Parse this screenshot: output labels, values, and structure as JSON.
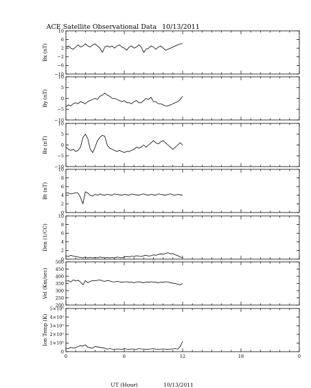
{
  "title": "ACE Satellite Observational Data",
  "date": "10/13/2011",
  "xlabel": "UT (Hour)",
  "xlabel_date": "10/13/2011",
  "x_ticks": [
    "0",
    "6",
    "12",
    "18",
    "0"
  ],
  "chart_data": [
    {
      "type": "line",
      "id": "bx",
      "ylabel": "Bx (nT)",
      "ylim": [
        -10,
        10
      ],
      "y_ticks": [
        "10",
        "6",
        "2",
        "−2",
        "−6",
        "−10"
      ],
      "series": [
        {
          "x": [
            0,
            0.25,
            0.5,
            0.75,
            1,
            1.25,
            1.5,
            1.75,
            2,
            2.25,
            2.5,
            2.75,
            3,
            3.25,
            3.5,
            3.75,
            4,
            4.25,
            4.5,
            4.75,
            5,
            5.25,
            5.5,
            5.75,
            6,
            6.25,
            6.5,
            6.75,
            7,
            7.25,
            7.5,
            7.75,
            8,
            8.25,
            8.5,
            8.75,
            9,
            9.25,
            9.5,
            9.75,
            10,
            10.25,
            10.5,
            10.75,
            11,
            11.25,
            11.5,
            11.75,
            12
          ],
          "values": [
            2.5,
            3,
            2,
            1.5,
            2.5,
            3.5,
            2.5,
            3,
            4,
            3,
            2.5,
            3.5,
            4,
            3,
            2,
            0,
            2.5,
            3,
            2.5,
            3,
            2,
            3,
            3.5,
            2.5,
            2,
            1,
            2.5,
            3,
            2,
            2.5,
            3.5,
            2.5,
            0,
            1.5,
            2,
            3,
            2.5,
            1.5,
            2.5,
            3,
            2,
            1,
            1.5,
            2,
            2.5,
            3,
            3.5,
            4,
            4
          ]
        }
      ]
    },
    {
      "type": "line",
      "id": "by",
      "ylabel": "By (nT)",
      "ylim": [
        -10,
        10
      ],
      "y_ticks": [
        "10",
        "5",
        "0",
        "−5",
        "−10"
      ],
      "series": [
        {
          "x": [
            0,
            0.25,
            0.5,
            0.75,
            1,
            1.25,
            1.5,
            1.75,
            2,
            2.25,
            2.5,
            2.75,
            3,
            3.25,
            3.5,
            3.75,
            4,
            4.25,
            4.5,
            4.75,
            5,
            5.25,
            5.5,
            5.75,
            6,
            6.25,
            6.5,
            6.75,
            7,
            7.25,
            7.5,
            7.75,
            8,
            8.25,
            8.5,
            8.75,
            9,
            9.25,
            9.5,
            9.75,
            10,
            10.25,
            10.5,
            10.75,
            11,
            11.25,
            11.5,
            11.75,
            12
          ],
          "values": [
            -4,
            -3,
            -3.5,
            -2.5,
            -2,
            -2.5,
            -1.5,
            -2,
            -2.5,
            -1.5,
            -1,
            -0.5,
            0,
            -0.5,
            1,
            1.5,
            2.5,
            1.5,
            1,
            0,
            0,
            -0.5,
            -1,
            -1.5,
            -1,
            -2,
            -2,
            -2.5,
            -1.5,
            -1,
            -2,
            -2,
            -1,
            0,
            -0.5,
            0.5,
            -1.5,
            -1.5,
            -2.5,
            -2.5,
            -3,
            -3.5,
            -3.5,
            -3,
            -2.5,
            -2,
            -1.5,
            -0.5,
            1
          ]
        }
      ]
    },
    {
      "type": "line",
      "id": "bz",
      "ylabel": "Bz (nT)",
      "ylim": [
        -10,
        10
      ],
      "y_ticks": [
        "10",
        "5",
        "0",
        "−5",
        "−10"
      ],
      "series": [
        {
          "x": [
            0,
            0.25,
            0.5,
            0.75,
            1,
            1.25,
            1.5,
            1.75,
            2,
            2.25,
            2.5,
            2.75,
            3,
            3.25,
            3.5,
            3.75,
            4,
            4.25,
            4.5,
            4.75,
            5,
            5.25,
            5.5,
            5.75,
            6,
            6.25,
            6.5,
            6.75,
            7,
            7.25,
            7.5,
            7.75,
            8,
            8.25,
            8.5,
            8.75,
            9,
            9.25,
            9.5,
            9.75,
            10,
            10.25,
            10.5,
            10.75,
            11,
            11.25,
            11.5,
            11.75,
            12
          ],
          "values": [
            -1,
            -2,
            -2.5,
            -2,
            -3,
            -2.5,
            -1,
            3.5,
            5,
            3,
            -2,
            -3.5,
            -1,
            2,
            3.5,
            4.5,
            4,
            0,
            -1.5,
            -2,
            -2.5,
            -3,
            -2.5,
            -3,
            -3.5,
            -3,
            -3,
            -2.5,
            -2,
            -1,
            -1.5,
            -1,
            0,
            -1,
            0,
            1,
            2,
            1,
            0.5,
            1.5,
            2,
            1,
            0,
            -1,
            -2,
            -1,
            0,
            1,
            0
          ]
        }
      ]
    },
    {
      "type": "line",
      "id": "bt",
      "ylabel": "Bt (nT)",
      "ylim": [
        0,
        10
      ],
      "y_ticks": [
        "10",
        "8",
        "6",
        "4",
        "2",
        "0"
      ],
      "series": [
        {
          "x": [
            0,
            0.25,
            0.5,
            0.75,
            1,
            1.25,
            1.5,
            1.75,
            2,
            2.25,
            2.5,
            2.75,
            3,
            3.25,
            3.5,
            3.75,
            4,
            4.25,
            4.5,
            4.75,
            5,
            5.25,
            5.5,
            5.75,
            6,
            6.25,
            6.5,
            6.75,
            7,
            7.25,
            7.5,
            7.75,
            8,
            8.25,
            8.5,
            8.75,
            9,
            9.25,
            9.5,
            9.75,
            10,
            10.25,
            10.5,
            10.75,
            11,
            11.25,
            11.5,
            11.75,
            12
          ],
          "values": [
            4.6,
            4.5,
            4.3,
            4.4,
            4.6,
            4.5,
            3.5,
            2,
            4.8,
            4.5,
            4,
            3.8,
            4.2,
            4,
            4.3,
            4.1,
            4,
            4.2,
            4.1,
            4,
            4.3,
            4.2,
            4.1,
            4,
            4.2,
            4.1,
            4,
            4.3,
            4.2,
            4.1,
            4,
            4.2,
            4.3,
            4.1,
            4,
            4.2,
            4.1,
            4,
            4.3,
            4.2,
            4.1,
            4,
            4.2,
            4.3,
            4.1,
            4,
            4.2,
            4.1,
            4
          ]
        }
      ]
    },
    {
      "type": "line",
      "id": "den",
      "ylabel": "Den (1/CC)",
      "ylim": [
        0,
        10
      ],
      "y_ticks": [
        "10",
        "8",
        "6",
        "4",
        "2",
        "0"
      ],
      "series": [
        {
          "x": [
            0,
            0.25,
            0.5,
            0.75,
            1,
            1.25,
            1.5,
            1.75,
            2,
            2.25,
            2.5,
            2.75,
            3,
            3.25,
            3.5,
            3.75,
            4,
            4.25,
            4.5,
            4.75,
            5,
            5.25,
            5.5,
            5.75,
            6,
            6.25,
            6.5,
            6.75,
            7,
            7.25,
            7.5,
            7.75,
            8,
            8.25,
            8.5,
            8.75,
            9,
            9.25,
            9.5,
            9.75,
            10,
            10.25,
            10.5,
            10.75,
            11,
            11.25,
            11.5,
            11.75,
            12
          ],
          "values": [
            0.8,
            0.6,
            0.9,
            0.7,
            0.6,
            0.5,
            0.4,
            0.3,
            0.5,
            0.3,
            0.4,
            0.3,
            0.4,
            0.3,
            0.5,
            0.4,
            0.3,
            0.4,
            0.3,
            0.4,
            0.3,
            0.5,
            0.4,
            0.3,
            0.5,
            0.6,
            0.5,
            0.7,
            0.6,
            0.8,
            0.7,
            0.6,
            0.8,
            0.9,
            0.7,
            0.8,
            1,
            0.9,
            1.1,
            1.2,
            1.1,
            1.3,
            1.5,
            1.2,
            1.3,
            1,
            0.8,
            0.5,
            0.3
          ]
        }
      ]
    },
    {
      "type": "line",
      "id": "vel",
      "ylabel": "Vel (Km/sec)",
      "ylim": [
        200,
        500
      ],
      "y_ticks": [
        "500",
        "450",
        "400",
        "350",
        "300",
        "250",
        "200"
      ],
      "series": [
        {
          "x": [
            0,
            0.25,
            0.5,
            0.75,
            1,
            1.25,
            1.5,
            1.75,
            2,
            2.25,
            2.5,
            2.75,
            3,
            3.25,
            3.5,
            3.75,
            4,
            4.25,
            4.5,
            4.75,
            5,
            5.25,
            5.5,
            5.75,
            6,
            6.25,
            6.5,
            6.75,
            7,
            7.25,
            7.5,
            7.75,
            8,
            8.25,
            8.5,
            8.75,
            9,
            9.25,
            9.5,
            9.75,
            10,
            10.25,
            10.5,
            10.75,
            11,
            11.25,
            11.5,
            11.75,
            12
          ],
          "values": [
            365,
            370,
            360,
            375,
            368,
            372,
            360,
            340,
            370,
            355,
            365,
            370,
            368,
            372,
            375,
            368,
            365,
            370,
            368,
            362,
            360,
            365,
            362,
            358,
            360,
            362,
            358,
            360,
            355,
            360,
            362,
            358,
            355,
            360,
            358,
            362,
            360,
            358,
            355,
            360,
            358,
            362,
            360,
            355,
            352,
            350,
            345,
            340,
            350
          ]
        }
      ]
    },
    {
      "type": "line",
      "id": "temp",
      "ylabel": "Ion Temp (K)",
      "ylim": [
        0,
        500000
      ],
      "y_ticks": [
        "5×10⁵",
        "4×10⁵",
        "3×10⁵",
        "2×10⁵",
        "1×10⁵",
        "0"
      ],
      "series": [
        {
          "x": [
            0,
            0.25,
            0.5,
            0.75,
            1,
            1.25,
            1.5,
            1.75,
            2,
            2.25,
            2.5,
            2.75,
            3,
            3.25,
            3.5,
            3.75,
            4,
            4.25,
            4.5,
            4.75,
            5,
            5.25,
            5.5,
            5.75,
            6,
            6.25,
            6.5,
            6.75,
            7,
            7.25,
            7.5,
            7.75,
            8,
            8.25,
            8.5,
            8.75,
            9,
            9.25,
            9.5,
            9.75,
            10,
            10.25,
            10.5,
            10.75,
            11,
            11.25,
            11.5,
            11.75,
            12
          ],
          "values": [
            40000,
            35000,
            50000,
            40000,
            45000,
            60000,
            70000,
            65000,
            80000,
            50000,
            45000,
            40000,
            60000,
            55000,
            50000,
            45000,
            40000,
            30000,
            35000,
            30000,
            28000,
            32000,
            30000,
            28000,
            35000,
            30000,
            28000,
            32000,
            30000,
            28000,
            35000,
            32000,
            30000,
            28000,
            30000,
            32000,
            35000,
            30000,
            28000,
            30000,
            32000,
            30000,
            28000,
            30000,
            32000,
            35000,
            30000,
            60000,
            120000
          ]
        }
      ]
    }
  ]
}
